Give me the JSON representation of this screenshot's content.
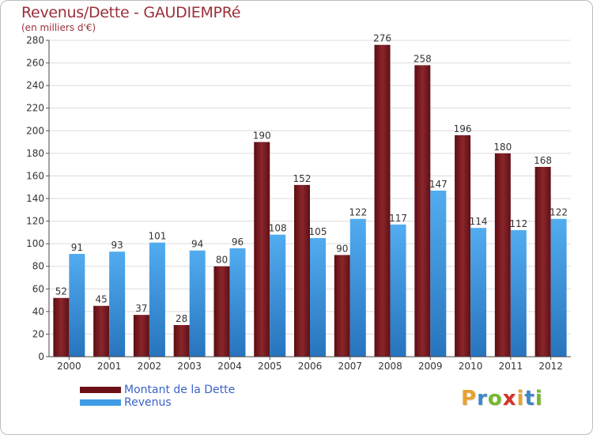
{
  "chart_data": {
    "type": "bar",
    "title": "Revenus/Dette - GAUDIEMPRé",
    "subtitle": "(en milliers d'€)",
    "categories": [
      "2000",
      "2001",
      "2002",
      "2003",
      "2004",
      "2005",
      "2006",
      "2007",
      "2008",
      "2009",
      "2010",
      "2011",
      "2012"
    ],
    "series": [
      {
        "name": "Montant de la Dette",
        "color": "#7a1f26",
        "values": [
          52,
          45,
          37,
          28,
          80,
          190,
          152,
          90,
          276,
          258,
          196,
          180,
          168
        ]
      },
      {
        "name": "Revenus",
        "color": "#3f9be6",
        "values": [
          91,
          93,
          101,
          94,
          96,
          108,
          105,
          122,
          117,
          147,
          114,
          112,
          122
        ]
      }
    ],
    "ylim": [
      0,
      280
    ],
    "yticks": [
      0,
      20,
      40,
      60,
      80,
      100,
      120,
      140,
      160,
      180,
      200,
      220,
      240,
      260,
      280
    ],
    "grid": true,
    "legend_position": "bottom-left"
  },
  "legend": {
    "items": [
      {
        "label": "Montant de la Dette",
        "color": "#6b1016"
      },
      {
        "label": "Revenus",
        "color": "#3f9be6"
      }
    ]
  },
  "logo": {
    "text": "Proxiti",
    "letters": [
      "P",
      "r",
      "o",
      "x",
      "i",
      "t",
      "i"
    ],
    "colors": [
      "#e8a22e",
      "#3f86c8",
      "#74b82e",
      "#d4332a",
      "#e8a22e",
      "#3f86c8",
      "#74b82e"
    ]
  }
}
